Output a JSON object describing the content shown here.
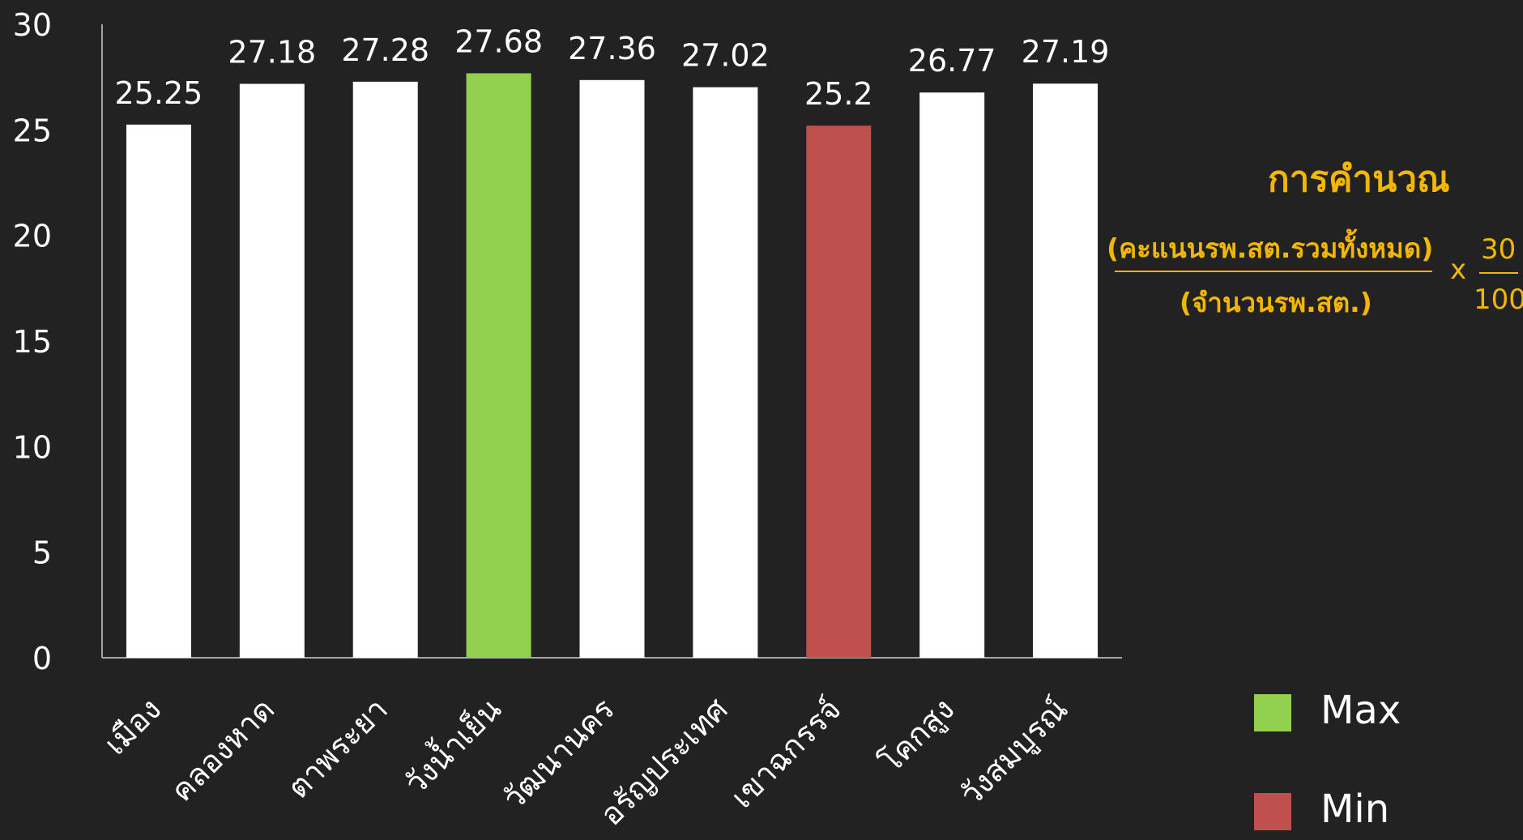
{
  "chart_data": {
    "type": "bar",
    "categories": [
      "เมือง",
      "คลองหาด",
      "ตาพระยา",
      "วังน้ำเย็น",
      "วัฒนานคร",
      "อรัญประเทศ",
      "เขาฉกรรจ์",
      "โคกสูง",
      "วังสมบูรณ์"
    ],
    "values": [
      25.25,
      27.18,
      27.28,
      27.68,
      27.36,
      27.02,
      25.2,
      26.77,
      27.19
    ],
    "data_labels": [
      "25.25",
      "27.18",
      "27.28",
      "27.68",
      "27.36",
      "27.02",
      "25.2",
      "26.77",
      "27.19"
    ],
    "highlight": [
      "normal",
      "normal",
      "normal",
      "max",
      "normal",
      "normal",
      "min",
      "normal",
      "normal"
    ],
    "ylim": [
      0,
      30
    ],
    "yticks": [
      0,
      5,
      10,
      15,
      20,
      25,
      30
    ],
    "grid": false,
    "legend_placement": "bottom-right",
    "colors": {
      "normal": "#FFFFFF",
      "max": "#92D050",
      "min": "#C0504D",
      "background": "#222222",
      "axis": "#A6A6A6"
    }
  },
  "legend": [
    {
      "label": "Max",
      "color": "#92D050"
    },
    {
      "label": "Min",
      "color": "#C0504D"
    }
  ],
  "formula": {
    "title": "การคำนวณ",
    "numerator": "(คะแนนรพ.สต.รวมทั้งหมด)",
    "denominator": "(จำนวนรพ.สต.)",
    "times": "x",
    "factor_numerator": "30",
    "factor_denominator": "100",
    "color": "#F2B705"
  }
}
